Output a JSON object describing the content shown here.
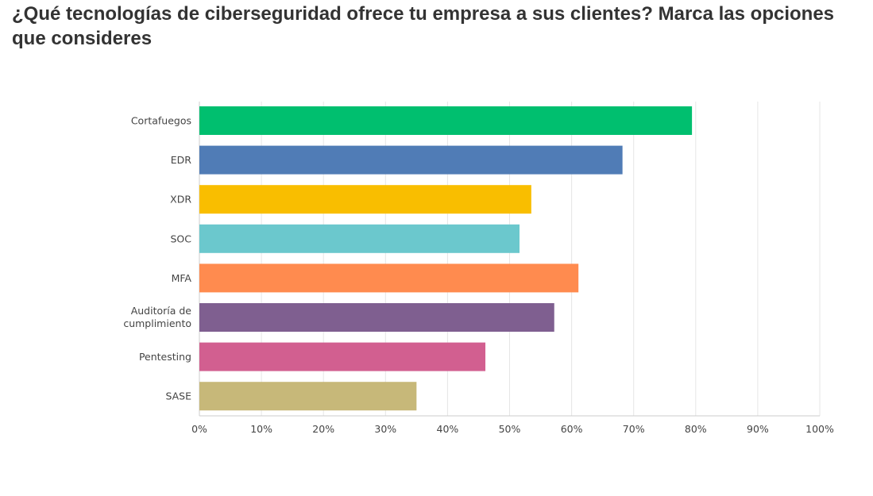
{
  "title": "¿Qué tecnologías de ciberseguridad ofrece tu empresa a sus clientes? Marca las opciones que consideres",
  "chart_data": {
    "type": "bar",
    "orientation": "horizontal",
    "title": "¿Qué tecnologías de ciberseguridad ofrece tu empresa a sus clientes? Marca las opciones que consideres",
    "categories": [
      [
        "Cortafuegos"
      ],
      [
        "EDR"
      ],
      [
        "XDR"
      ],
      [
        "SOC"
      ],
      [
        "MFA"
      ],
      [
        "Auditoría de",
        "cumplimiento"
      ],
      [
        "Pentesting"
      ],
      [
        "SASE"
      ]
    ],
    "values": [
      79.4,
      68.2,
      53.5,
      51.6,
      61.1,
      57.2,
      46.1,
      35.0
    ],
    "colors": [
      "#00bf6f",
      "#507cb6",
      "#f9be00",
      "#6bc8cd",
      "#ff8b4f",
      "#7f5f90",
      "#d25f90",
      "#c7b879"
    ],
    "xlim": [
      0,
      100
    ],
    "ticks": [
      "0%",
      "10%",
      "20%",
      "30%",
      "40%",
      "50%",
      "60%",
      "70%",
      "80%",
      "90%",
      "100%"
    ],
    "xlabel": "",
    "ylabel": "",
    "grid": true,
    "legend": "none"
  }
}
